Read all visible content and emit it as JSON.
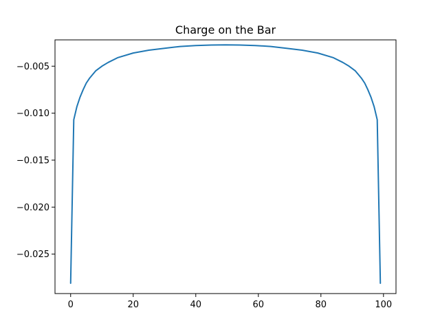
{
  "chart_data": {
    "type": "line",
    "title": "Charge on the Bar",
    "xlabel": "",
    "ylabel": "",
    "xlim": [
      -5,
      104
    ],
    "ylim": [
      -0.0292,
      -0.0022
    ],
    "grid": false,
    "x_ticks": [
      0,
      20,
      40,
      60,
      80,
      100
    ],
    "x_tick_labels": [
      "0",
      "20",
      "40",
      "60",
      "80",
      "100"
    ],
    "y_ticks": [
      -0.005,
      -0.01,
      -0.015,
      -0.02,
      -0.025
    ],
    "y_tick_labels": [
      "−0.005",
      "−0.010",
      "−0.015",
      "−0.020",
      "−0.025"
    ],
    "series": [
      {
        "color": "#1f77b4",
        "x": [
          0,
          1,
          2,
          3,
          4,
          5,
          6,
          8,
          10,
          12,
          15,
          20,
          25,
          30,
          35,
          40,
          45,
          49.5,
          54,
          59,
          64,
          69,
          74,
          79,
          84,
          87,
          89,
          91,
          93,
          94,
          95,
          96,
          97,
          98,
          99
        ],
        "y": [
          -0.0281,
          -0.0107,
          -0.0093,
          -0.0083,
          -0.0075,
          -0.0068,
          -0.0063,
          -0.0055,
          -0.005,
          -0.0046,
          -0.0041,
          -0.0036,
          -0.0033,
          -0.0031,
          -0.0029,
          -0.0028,
          -0.00275,
          -0.00273,
          -0.00275,
          -0.0028,
          -0.0029,
          -0.0031,
          -0.0033,
          -0.0036,
          -0.0041,
          -0.0046,
          -0.005,
          -0.0055,
          -0.0063,
          -0.0068,
          -0.0075,
          -0.0083,
          -0.0093,
          -0.0107,
          -0.0281
        ]
      }
    ]
  }
}
